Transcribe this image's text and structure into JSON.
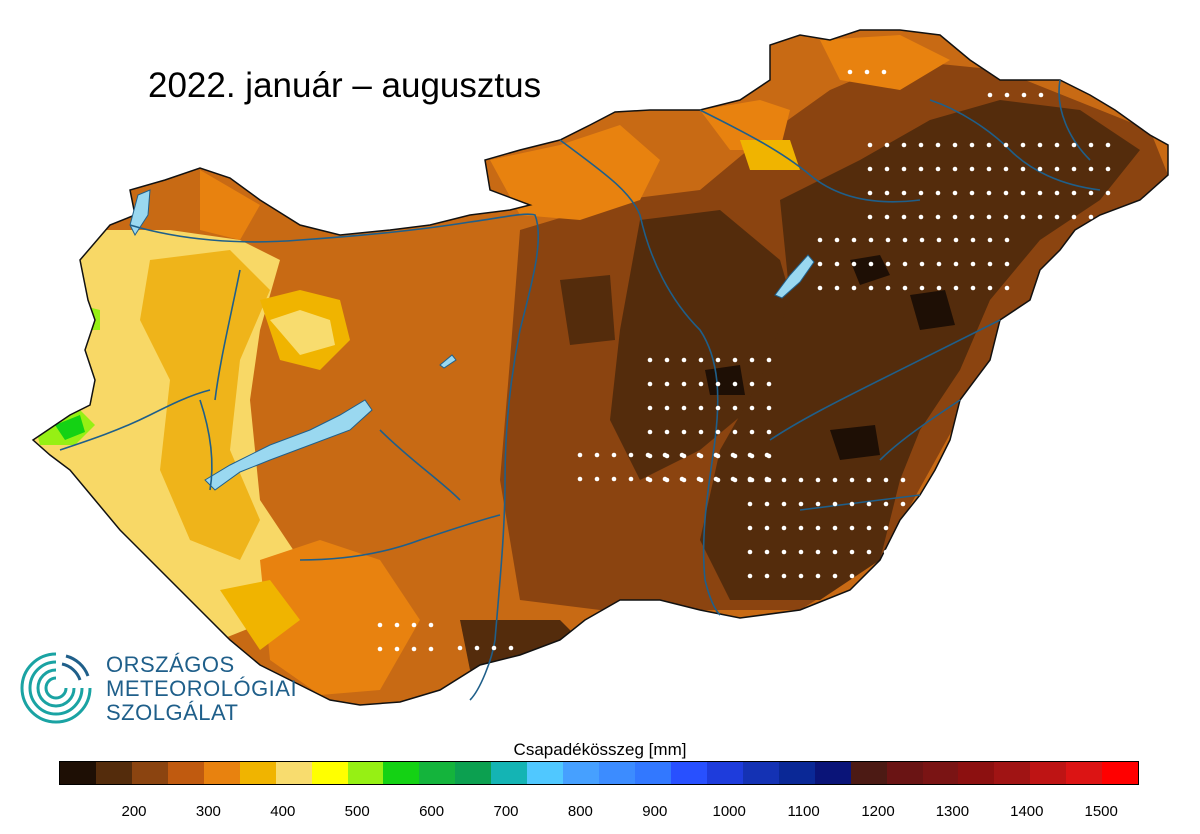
{
  "title": "2022. január – augusztus",
  "organization": {
    "line1": "ORSZÁGOS",
    "line2": "METEOROLÓGIAI",
    "line3": "SZOLGÁLAT"
  },
  "legend": {
    "title": "Csapadékösszeg [mm]",
    "colors": [
      "#1e0f05",
      "#542c0c",
      "#8b4410",
      "#c05a0f",
      "#e8820f",
      "#f0b400",
      "#f8dc6e",
      "#ffff00",
      "#96f014",
      "#14d214",
      "#14b43c",
      "#0ca050",
      "#14b4b4",
      "#50c8ff",
      "#46a0ff",
      "#3c8cff",
      "#3278ff",
      "#2850ff",
      "#1e3cdc",
      "#1432b4",
      "#0a2896",
      "#0a1478",
      "#4c1a14",
      "#6a1414",
      "#7a1414",
      "#8c1010",
      "#a01414",
      "#be1414",
      "#dc1414",
      "#ff0000"
    ],
    "tick_labels": [
      "200",
      "300",
      "400",
      "500",
      "600",
      "700",
      "800",
      "900",
      "1000",
      "1100",
      "1200",
      "1300",
      "1400",
      "1500"
    ]
  }
}
